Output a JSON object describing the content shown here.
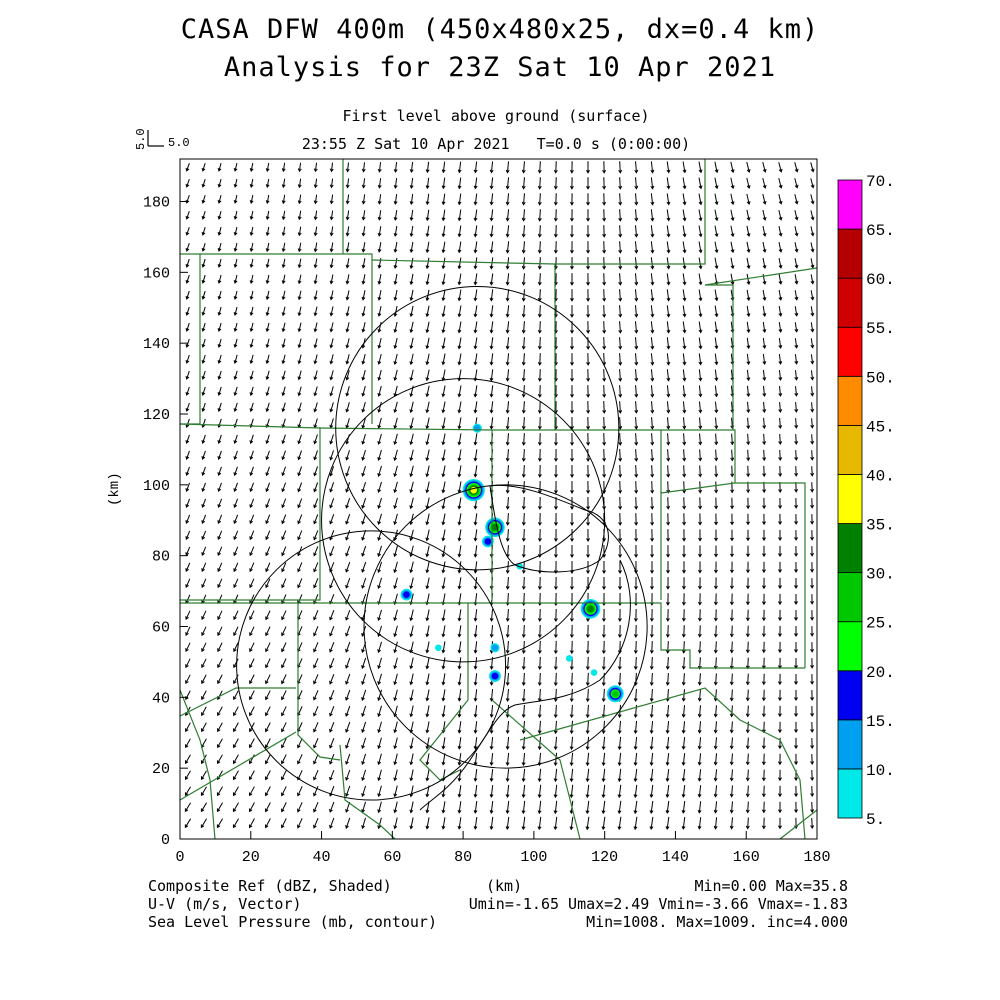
{
  "header": {
    "title_line1": "CASA DFW 400m (450x480x25, dx=0.4 km)",
    "title_line2": "Analysis for 23Z Sat 10 Apr 2021",
    "level": "First level above ground (surface)",
    "valid_time": "23:55 Z Sat 10 Apr 2021   T=0.0 s (0:00:00)"
  },
  "vector_key": {
    "label_vertical": "5.0",
    "label_horizontal": "5.0"
  },
  "axes": {
    "x_label": "(km)",
    "y_label": "(km)",
    "x_ticks": [
      "0",
      "20",
      "40",
      "60",
      "80",
      "100",
      "120",
      "140",
      "160",
      "180"
    ],
    "y_ticks": [
      "0",
      "20",
      "40",
      "60",
      "80",
      "100",
      "120",
      "140",
      "160",
      "180"
    ],
    "x_range_km": [
      0,
      180
    ],
    "y_range_km": [
      0,
      192
    ]
  },
  "colorbar": {
    "labels": [
      "5.",
      "10.",
      "15.",
      "20.",
      "25.",
      "30.",
      "35.",
      "40.",
      "45.",
      "50.",
      "55.",
      "60.",
      "65.",
      "70."
    ],
    "colors": [
      "#00e8e8",
      "#00a0f0",
      "#0000f0",
      "#00ff00",
      "#00c800",
      "#008000",
      "#ffff00",
      "#e6b800",
      "#ff8c00",
      "#ff0000",
      "#d00000",
      "#b40000",
      "#ff00ff"
    ]
  },
  "footer": {
    "field1_name": "Composite Ref (dBZ, Shaded)",
    "field1_stats": "Min=0.00 Max=35.8",
    "field2_name": "U-V (m/s, Vector)",
    "field2_stats": "Umin=-1.65 Umax=2.49 Vmin=-3.66 Vmax=-1.83",
    "field3_name": "Sea Level Pressure (mb, contour)",
    "field3_stats": "Min=1008. Max=1009. inc=4.000",
    "x_unit": "(km)"
  },
  "map_data": {
    "radar_range_rings_km": [
      {
        "cx": 84,
        "cy": 116,
        "r": 40
      },
      {
        "cx": 80,
        "cy": 90,
        "r": 40
      },
      {
        "cx": 54,
        "cy": 49,
        "r": 38
      },
      {
        "cx": 92,
        "cy": 60,
        "r": 40
      }
    ],
    "reflectivity_cells_km": [
      {
        "x": 83,
        "y": 98.5,
        "dbz": 35
      },
      {
        "x": 89,
        "y": 88,
        "dbz": 32
      },
      {
        "x": 87,
        "y": 84,
        "dbz": 18
      },
      {
        "x": 64,
        "y": 69,
        "dbz": 15
      },
      {
        "x": 116,
        "y": 65,
        "dbz": 30
      },
      {
        "x": 123,
        "y": 41,
        "dbz": 28
      },
      {
        "x": 89,
        "y": 46,
        "dbz": 18
      },
      {
        "x": 89,
        "y": 54,
        "dbz": 10
      },
      {
        "x": 84,
        "y": 116,
        "dbz": 10
      },
      {
        "x": 96,
        "y": 77,
        "dbz": 8
      },
      {
        "x": 110,
        "y": 51,
        "dbz": 8
      },
      {
        "x": 73,
        "y": 54,
        "dbz": 7
      },
      {
        "x": 117,
        "y": 47,
        "dbz": 7
      }
    ]
  }
}
